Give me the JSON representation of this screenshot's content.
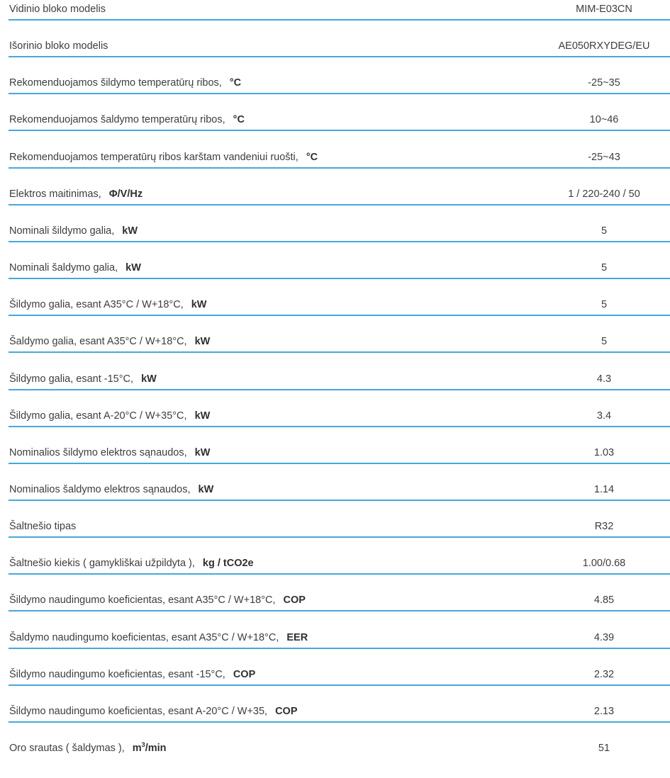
{
  "specs": [
    {
      "label": "Vidinio bloko modelis",
      "unit": "",
      "value": "MIM-E03CN"
    },
    {
      "label": "Išorinio bloko modelis",
      "unit": "",
      "value": "AE050RXYDEG/EU"
    },
    {
      "label": "Rekomenduojamos šildymo temperatūrų ribos,",
      "unit": "°C",
      "value": "-25~35"
    },
    {
      "label": "Rekomenduojamos šaldymo temperatūrų ribos,",
      "unit": "°C",
      "value": "10~46"
    },
    {
      "label": "Rekomenduojamos temperatūrų ribos karštam vandeniui ruošti,",
      "unit": "°C",
      "value": "-25~43"
    },
    {
      "label": "Elektros maitinimas,",
      "unit": "Φ/V/Hz",
      "value": "1 / 220-240 / 50"
    },
    {
      "label": "Nominali šildymo galia,",
      "unit": "kW",
      "value": "5"
    },
    {
      "label": "Nominali šaldymo galia,",
      "unit": "kW",
      "value": "5"
    },
    {
      "label": "Šildymo galia, esant A35°C / W+18°C,",
      "unit": "kW",
      "value": "5"
    },
    {
      "label": "Šaldymo galia, esant A35°C / W+18°C,",
      "unit": "kW",
      "value": "5"
    },
    {
      "label": "Šildymo galia, esant -15°C,",
      "unit": "kW",
      "value": "4.3"
    },
    {
      "label": "Šildymo galia, esant A-20°C / W+35°C,",
      "unit": "kW",
      "value": "3.4"
    },
    {
      "label": "Nominalios šildymo elektros sąnaudos,",
      "unit": "kW",
      "value": "1.03"
    },
    {
      "label": "Nominalios šaldymo elektros sąnaudos,",
      "unit": "kW",
      "value": "1.14"
    },
    {
      "label": "Šaltnešio tipas",
      "unit": "",
      "value": "R32"
    },
    {
      "label": "Šaltnešio kiekis ( gamykliškai užpildyta ),",
      "unit": "kg / tCO2e",
      "value": "1.00/0.68"
    },
    {
      "label": "Šildymo naudingumo koeficientas, esant A35°C / W+18°C,",
      "unit": "COP",
      "value": "4.85"
    },
    {
      "label": "Šaldymo naudingumo koeficientas, esant A35°C / W+18°C,",
      "unit": "EER",
      "value": "4.39"
    },
    {
      "label": "Šildymo naudingumo koeficientas, esant -15°C,",
      "unit": "COP",
      "value": "2.32"
    },
    {
      "label": "Šildymo naudingumo koeficientas, esant A-20°C / W+35,",
      "unit": "COP",
      "value": "2.13"
    },
    {
      "label": "Oro srautas ( šaldymas ),",
      "unit": "m",
      "unit_sup": "3",
      "unit_suffix": "/min",
      "value": "51"
    }
  ],
  "colors": {
    "divider": "#46a8db",
    "text": "#3d3d3d"
  }
}
